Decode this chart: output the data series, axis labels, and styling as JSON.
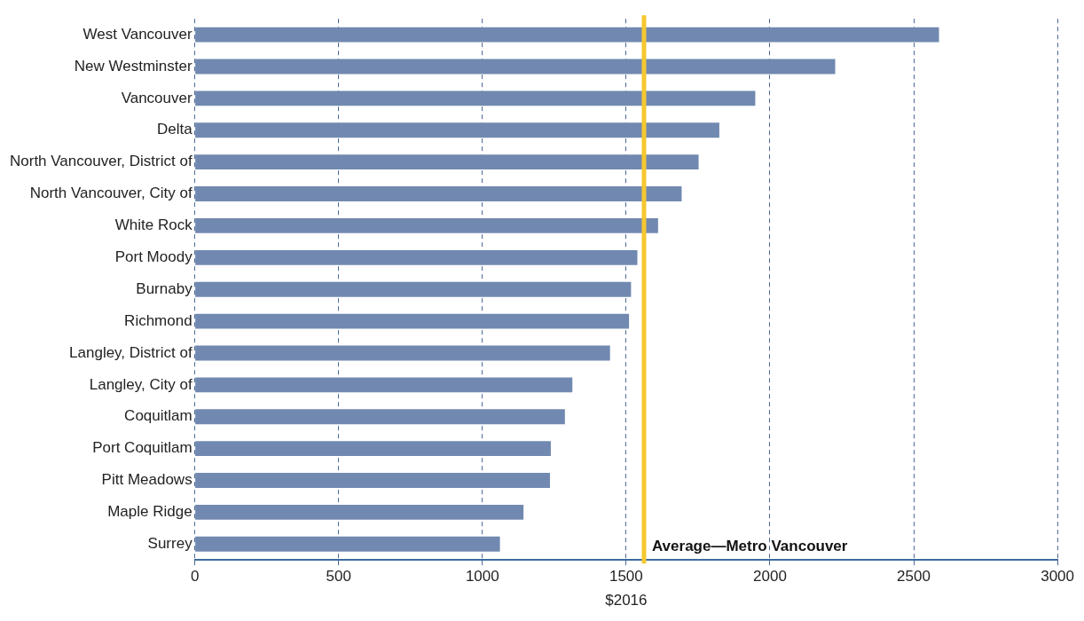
{
  "chart_data": {
    "type": "bar",
    "orientation": "horizontal",
    "xlabel": "$2016",
    "categories": [
      "West Vancouver",
      "New Westminster",
      "Vancouver",
      "Delta",
      "North Vancouver, District of",
      "North Vancouver, City of",
      "White Rock",
      "Port Moody",
      "Burnaby",
      "Richmond",
      "Langley, District of",
      "Langley, City of",
      "Coquitlam",
      "Port Coquitlam",
      "Pitt Meadows",
      "Maple Ridge",
      "Surrey"
    ],
    "values": [
      2588,
      2227,
      1949,
      1824,
      1752,
      1693,
      1611,
      1539,
      1517,
      1510,
      1444,
      1313,
      1287,
      1238,
      1235,
      1143,
      1061
    ],
    "color": "#7189b0",
    "xlim": [
      0,
      3000
    ],
    "xticks": [
      0,
      500,
      1000,
      1500,
      2000,
      2500,
      3000
    ],
    "grid": "x",
    "legend": false,
    "ref_lines": [
      {
        "axis": "x",
        "value": 1562,
        "label": "Average—Metro Vancouver",
        "color": "#f5c830"
      }
    ]
  }
}
